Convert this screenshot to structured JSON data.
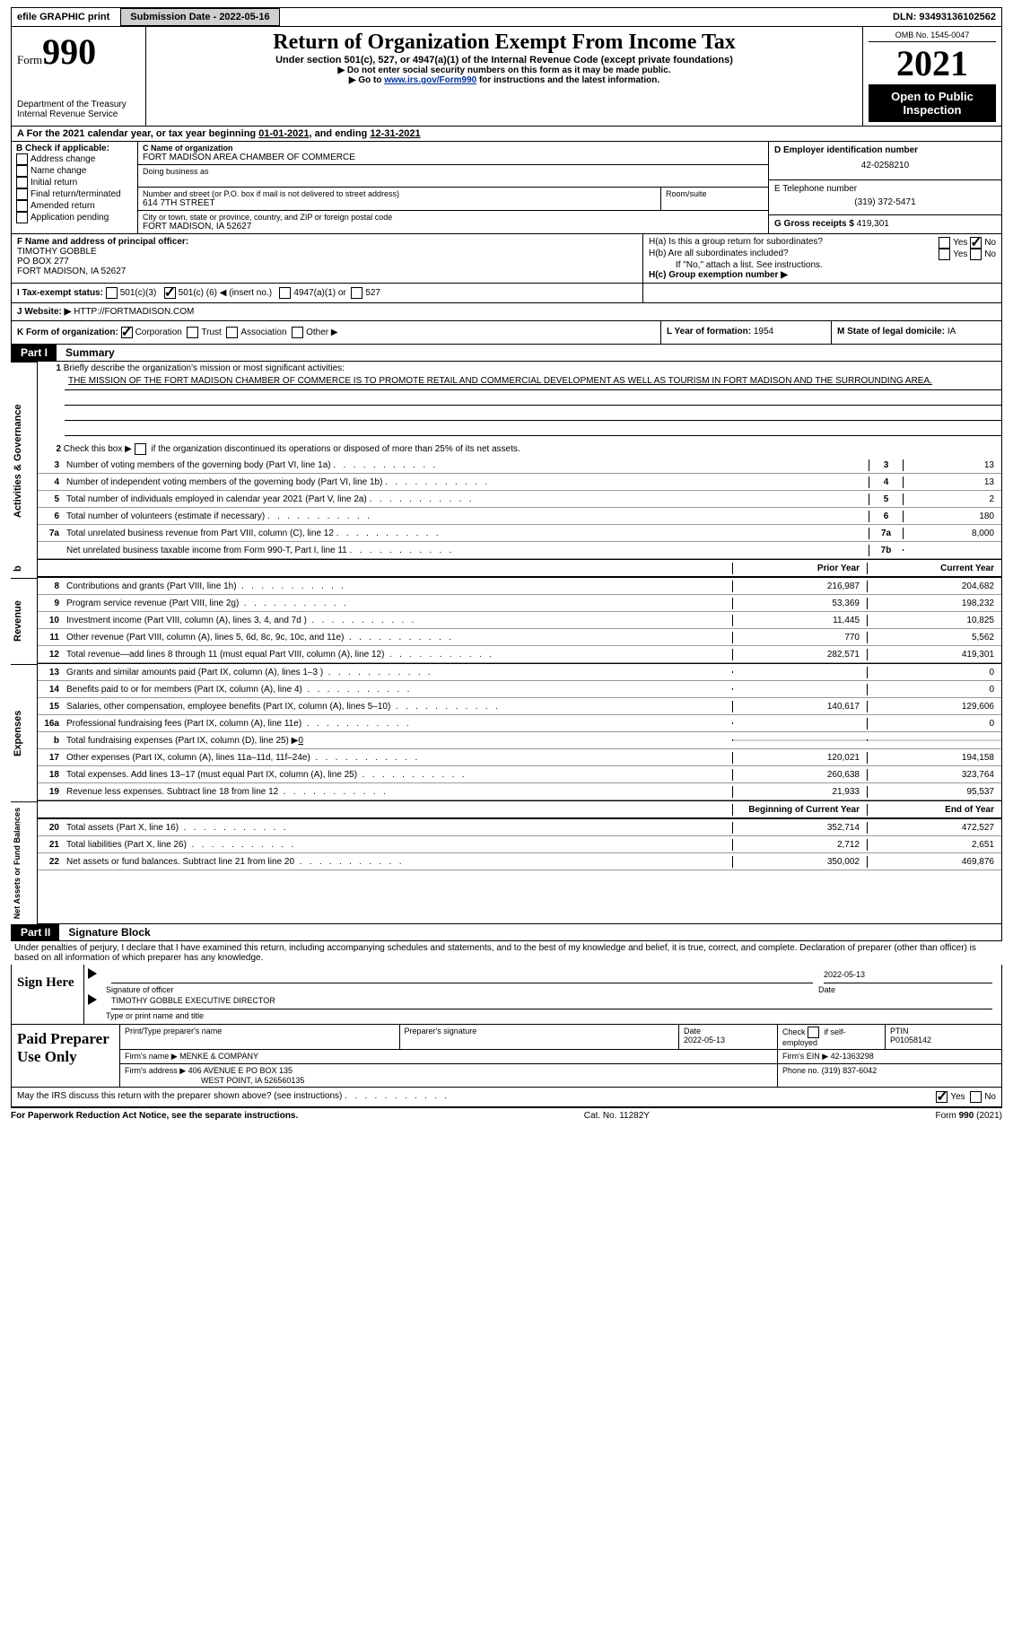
{
  "top": {
    "efile": "efile GRAPHIC print",
    "sub": "Submission Date - 2022-05-16",
    "dln": "DLN: 93493136102562"
  },
  "hdr": {
    "form": "Form",
    "num": "990",
    "dept": "Department of the Treasury",
    "irs": "Internal Revenue Service",
    "title": "Return of Organization Exempt From Income Tax",
    "sub": "Under section 501(c), 527, or 4947(a)(1) of the Internal Revenue Code (except private foundations)",
    "note1": "▶ Do not enter social security numbers on this form as it may be made public.",
    "note2": "▶ Go to ",
    "link": "www.irs.gov/Form990",
    "note3": " for instructions and the latest information.",
    "omb": "OMB No. 1545-0047",
    "year": "2021",
    "opb": "Open to Public Inspection"
  },
  "A": {
    "label": "A For the 2021 calendar year, or tax year beginning ",
    "begin": "01-01-2021",
    "mid": ", and ending ",
    "end": "12-31-2021"
  },
  "B": {
    "label": "B Check if applicable:",
    "opts": [
      "Address change",
      "Name change",
      "Initial return",
      "Final return/terminated",
      "Amended return",
      "Application pending"
    ]
  },
  "C": {
    "name_l": "C Name of organization",
    "name": "FORT MADISON AREA CHAMBER OF COMMERCE",
    "dba_l": "Doing business as",
    "addr_l": "Number and street (or P.O. box if mail is not delivered to street address)",
    "addr": "614 7TH STREET",
    "room_l": "Room/suite",
    "city_l": "City or town, state or province, country, and ZIP or foreign postal code",
    "city": "FORT MADISON, IA  52627"
  },
  "D": {
    "l": "D Employer identification number",
    "v": "42-0258210"
  },
  "E": {
    "l": "E Telephone number",
    "v": "(319) 372-5471"
  },
  "G": {
    "l": "G Gross receipts $",
    "v": "419,301"
  },
  "F": {
    "l": "F Name and address of principal officer:",
    "n": "TIMOTHY GOBBLE",
    "a1": "PO BOX 277",
    "a2": "FORT MADISON, IA  52627"
  },
  "H": {
    "a": "H(a)  Is this a group return for subordinates?",
    "b": "H(b)  Are all subordinates included?",
    "bnote": "If \"No,\" attach a list. See instructions.",
    "c": "H(c)  Group exemption number ▶",
    "yes": "Yes",
    "no": "No"
  },
  "I": {
    "l": "I    Tax-exempt status:",
    "o1": "501(c)(3)",
    "o2": "501(c) (",
    "o2n": "6",
    "o2e": ") ◀ (insert no.)",
    "o3": "4947(a)(1) or",
    "o4": "527"
  },
  "J": {
    "l": "J    Website: ▶",
    "v": "HTTP://FORTMADISON.COM"
  },
  "K": {
    "l": "K Form of organization:",
    "o": [
      "Corporation",
      "Trust",
      "Association",
      "Other ▶"
    ]
  },
  "L": {
    "l": "L Year of formation: ",
    "v": "1954"
  },
  "M": {
    "l": "M State of legal domicile: ",
    "v": "IA"
  },
  "p1": {
    "t": "Part I",
    "n": "Summary"
  },
  "s1": {
    "n": "1",
    "t": "Briefly describe the organization's mission or most significant activities:",
    "m": "THE MISSION OF THE FORT MADISON CHAMBER OF COMMERCE IS TO PROMOTE RETAIL AND COMMERCIAL DEVELOPMENT AS WELL AS TOURISM IN FORT MADISON AND THE SURROUNDING AREA."
  },
  "s2": {
    "n": "2",
    "t": "Check this box ▶",
    "t2": " if the organization discontinued its operations or disposed of more than 25% of its net assets."
  },
  "lines": [
    {
      "n": "3",
      "t": "Number of voting members of the governing body (Part VI, line 1a)",
      "b": "3",
      "v": "13"
    },
    {
      "n": "4",
      "t": "Number of independent voting members of the governing body (Part VI, line 1b)",
      "b": "4",
      "v": "13"
    },
    {
      "n": "5",
      "t": "Total number of individuals employed in calendar year 2021 (Part V, line 2a)",
      "b": "5",
      "v": "2"
    },
    {
      "n": "6",
      "t": "Total number of volunteers (estimate if necessary)",
      "b": "6",
      "v": "180"
    },
    {
      "n": "7a",
      "t": "Total unrelated business revenue from Part VIII, column (C), line 12",
      "b": "7a",
      "v": "8,000"
    },
    {
      "n": "",
      "t": "Net unrelated business taxable income from Form 990-T, Part I, line 11",
      "b": "7b",
      "v": ""
    }
  ],
  "cols": {
    "py": "Prior Year",
    "cy": "Current Year",
    "boy": "Beginning of Current Year",
    "eoy": "End of Year"
  },
  "rev": [
    {
      "n": "8",
      "t": "Contributions and grants (Part VIII, line 1h)",
      "p": "216,987",
      "c": "204,682"
    },
    {
      "n": "9",
      "t": "Program service revenue (Part VIII, line 2g)",
      "p": "53,369",
      "c": "198,232"
    },
    {
      "n": "10",
      "t": "Investment income (Part VIII, column (A), lines 3, 4, and 7d )",
      "p": "11,445",
      "c": "10,825"
    },
    {
      "n": "11",
      "t": "Other revenue (Part VIII, column (A), lines 5, 6d, 8c, 9c, 10c, and 11e)",
      "p": "770",
      "c": "5,562"
    },
    {
      "n": "12",
      "t": "Total revenue—add lines 8 through 11 (must equal Part VIII, column (A), line 12)",
      "p": "282,571",
      "c": "419,301"
    }
  ],
  "exp": [
    {
      "n": "13",
      "t": "Grants and similar amounts paid (Part IX, column (A), lines 1–3 )",
      "p": "",
      "c": "0"
    },
    {
      "n": "14",
      "t": "Benefits paid to or for members (Part IX, column (A), line 4)",
      "p": "",
      "c": "0"
    },
    {
      "n": "15",
      "t": "Salaries, other compensation, employee benefits (Part IX, column (A), lines 5–10)",
      "p": "140,617",
      "c": "129,606"
    },
    {
      "n": "16a",
      "t": "Professional fundraising fees (Part IX, column (A), line 11e)",
      "p": "",
      "c": "0"
    },
    {
      "n": "b",
      "t": "Total fundraising expenses (Part IX, column (D), line 25) ▶",
      "u": "0",
      "p": "shade",
      "c": "shade"
    },
    {
      "n": "17",
      "t": "Other expenses (Part IX, column (A), lines 11a–11d, 11f–24e)",
      "p": "120,021",
      "c": "194,158"
    },
    {
      "n": "18",
      "t": "Total expenses. Add lines 13–17 (must equal Part IX, column (A), line 25)",
      "p": "260,638",
      "c": "323,764"
    },
    {
      "n": "19",
      "t": "Revenue less expenses. Subtract line 18 from line 12",
      "p": "21,933",
      "c": "95,537"
    }
  ],
  "na": [
    {
      "n": "20",
      "t": "Total assets (Part X, line 16)",
      "p": "352,714",
      "c": "472,527"
    },
    {
      "n": "21",
      "t": "Total liabilities (Part X, line 26)",
      "p": "2,712",
      "c": "2,651"
    },
    {
      "n": "22",
      "t": "Net assets or fund balances. Subtract line 21 from line 20",
      "p": "350,002",
      "c": "469,876"
    }
  ],
  "vt": {
    "a": "Activities & Governance",
    "r": "Revenue",
    "e": "Expenses",
    "n": "Net Assets or Fund Balances"
  },
  "p2": {
    "t": "Part II",
    "n": "Signature Block"
  },
  "pen": "Under penalties of perjury, I declare that I have examined this return, including accompanying schedules and statements, and to the best of my knowledge and belief, it is true, correct, and complete. Declaration of preparer (other than officer) is based on all information of which preparer has any knowledge.",
  "sign": {
    "h": "Sign Here",
    "s1": "Signature of officer",
    "d": "Date",
    "dv": "2022-05-13",
    "n": "TIMOTHY GOBBLE  EXECUTIVE DIRECTOR",
    "nl": "Type or print name and title"
  },
  "prep": {
    "h": "Paid Preparer Use Only",
    "c1": "Print/Type preparer's name",
    "c2": "Preparer's signature",
    "c3": "Date",
    "c3v": "2022-05-13",
    "c4": "Check",
    "c4b": "if self-employed",
    "c5": "PTIN",
    "c5v": "P01058142",
    "f": "Firm's name   ▶",
    "fv": "MENKE & COMPANY",
    "e": "Firm's EIN ▶",
    "ev": "42-1363298",
    "a": "Firm's address ▶",
    "av1": "406 AVENUE E PO BOX 135",
    "av2": "WEST POINT, IA  526560135",
    "p": "Phone no.",
    "pv": "(319) 837-6042"
  },
  "disc": {
    "t": "May the IRS discuss this return with the preparer shown above? (see instructions)",
    "y": "Yes",
    "n": "No"
  },
  "foot": {
    "l": "For Paperwork Reduction Act Notice, see the separate instructions.",
    "c": "Cat. No. 11282Y",
    "r": "Form 990 (2021)"
  }
}
